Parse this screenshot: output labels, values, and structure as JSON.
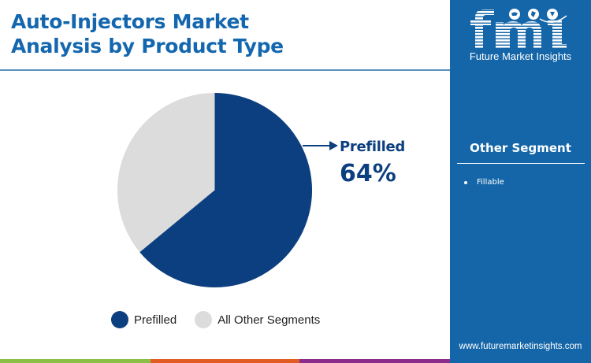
{
  "header": {
    "title_line1": "Auto-Injectors Market",
    "title_line2": "Analysis by Product Type"
  },
  "chart_data": {
    "type": "pie",
    "title": "Auto-Injectors Market Analysis by Product Type",
    "categories": [
      "Prefilled",
      "All Other Segments"
    ],
    "values": [
      64,
      36
    ],
    "unit": "%",
    "colors": [
      "#0c3f7f",
      "#dcdcdc"
    ],
    "start_angle": "12 o'clock, clockwise",
    "annotations": [
      {
        "label": "Prefilled",
        "value": "64%"
      }
    ],
    "legend_position": "bottom"
  },
  "callout": {
    "label": "Prefilled",
    "value": "64%"
  },
  "legend": {
    "items": [
      {
        "label": "Prefilled",
        "color": "#0c3f7f"
      },
      {
        "label": "All Other Segments",
        "color": "#dcdcdc"
      }
    ]
  },
  "side_panel": {
    "brand_letters": "fmi",
    "brand_name": "Future Market Insights",
    "segment_title": "Other Segment",
    "segments": [
      "Fillable"
    ],
    "website": "www.futuremarketinsights.com",
    "background": "#1466a8"
  },
  "bottom_bar": {
    "colors": [
      "#8cc045",
      "#e35b25",
      "#8b2c8a"
    ]
  }
}
